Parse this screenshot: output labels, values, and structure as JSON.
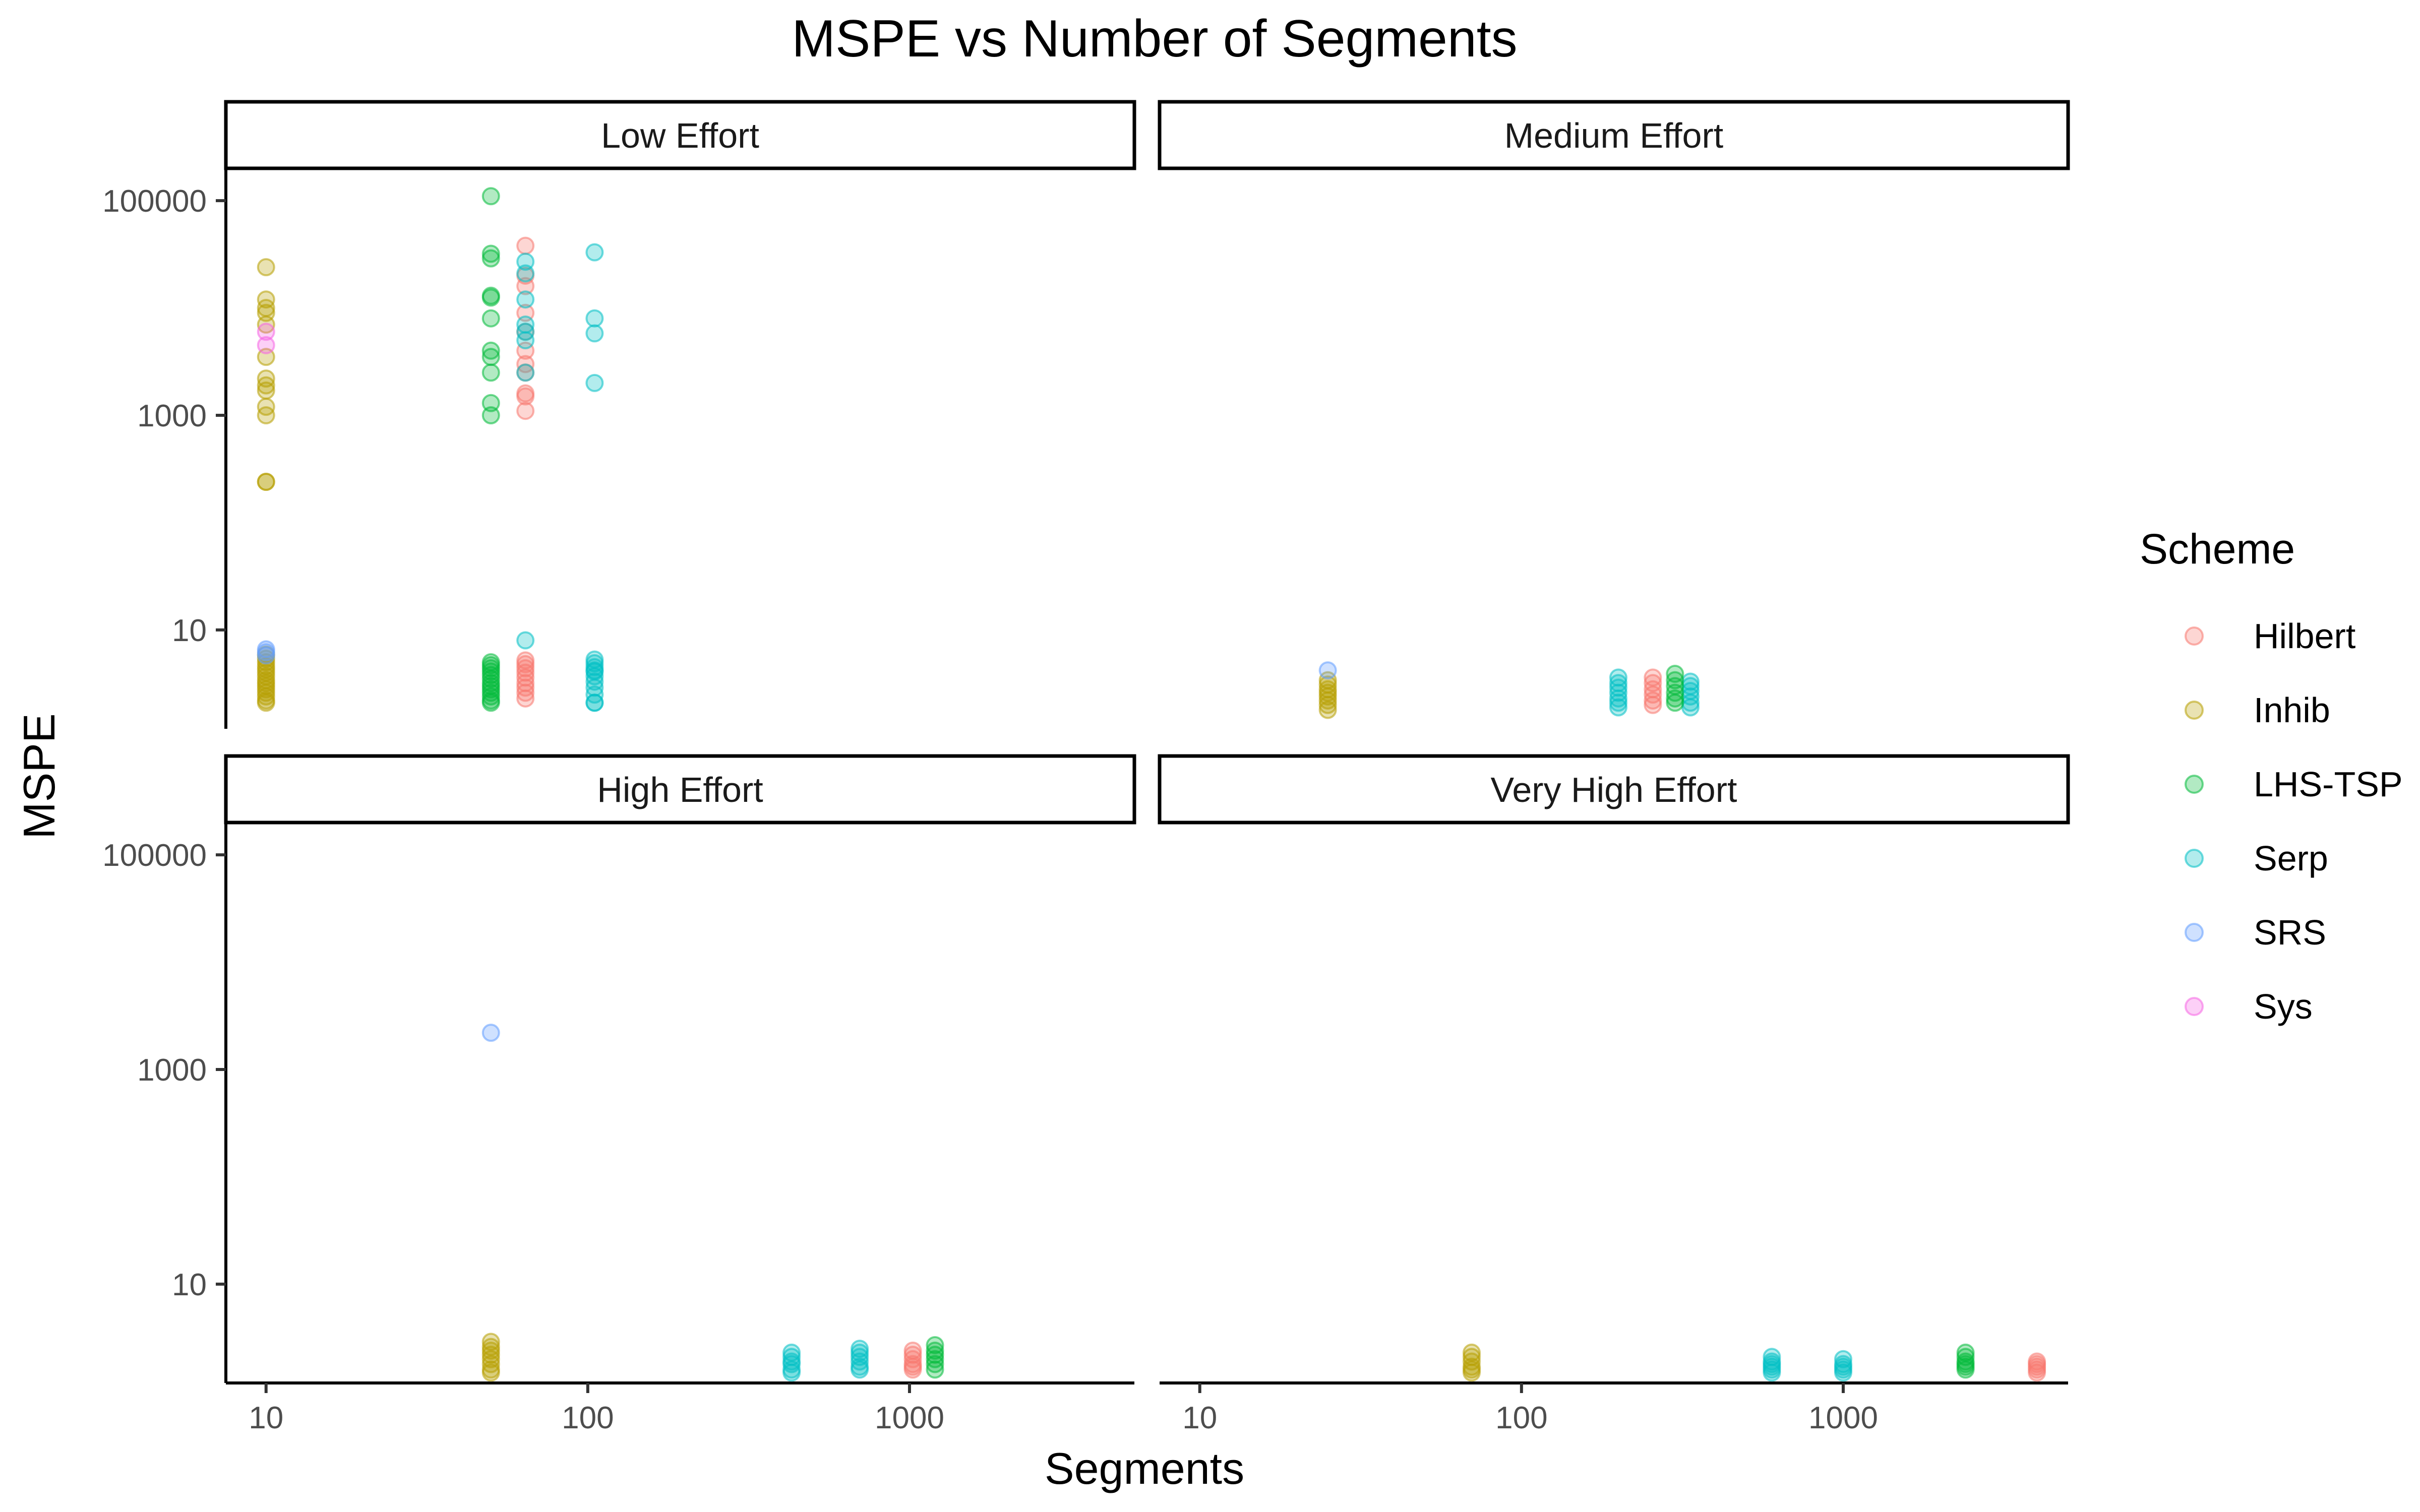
{
  "chart_data": {
    "type": "scatter",
    "title": "MSPE vs Number of Segments",
    "xlabel": "Segments",
    "ylabel": "MSPE",
    "x_scale": "log10",
    "y_scale": "log10",
    "xlim": [
      7.5,
      5000
    ],
    "ylim": [
      1.2,
      200000
    ],
    "x_ticks": [
      10,
      100,
      1000
    ],
    "x_tick_labels": [
      "10",
      "100",
      "1000"
    ],
    "y_ticks": [
      10,
      1000,
      100000
    ],
    "y_tick_labels": [
      "10",
      "1000",
      "100000"
    ],
    "grid": false,
    "point_alpha": 0.3,
    "legend": {
      "title": "Scheme",
      "position": "right",
      "entries": [
        {
          "name": "Hilbert",
          "color": "#F8766D"
        },
        {
          "name": "Inhib",
          "color": "#B79F00"
        },
        {
          "name": "LHS-TSP",
          "color": "#00BA38"
        },
        {
          "name": "Serp",
          "color": "#00BFC4"
        },
        {
          "name": "SRS",
          "color": "#619CFF"
        },
        {
          "name": "Sys",
          "color": "#F564E3"
        }
      ]
    },
    "panels": [
      {
        "label": "Low Effort",
        "series": [
          {
            "name": "Inhib",
            "x": [
              10,
              10,
              10,
              10,
              10,
              10,
              10,
              10,
              10,
              10,
              10,
              10,
              10,
              10,
              10,
              10,
              10,
              10,
              10,
              10,
              10,
              10,
              10,
              10,
              10,
              10,
              10,
              10
            ],
            "y": [
              24000,
              12000,
              10000,
              9000,
              7000,
              3500,
              2200,
              1900,
              1700,
              1200,
              1000,
              240,
              240,
              5.9,
              5.4,
              5,
              4.6,
              4.3,
              4,
              3.7,
              3.4,
              3.2,
              3,
              2.8,
              2.6,
              2.4,
              2.2,
              2.1
            ]
          },
          {
            "name": "Sys",
            "x": [
              10,
              10
            ],
            "y": [
              6000,
              4500
            ]
          },
          {
            "name": "SRS",
            "x": [
              10,
              10,
              10
            ],
            "y": [
              6.6,
              6.2,
              5.8
            ]
          },
          {
            "name": "LHS-TSP",
            "x": [
              50,
              50,
              50,
              50,
              50,
              50,
              50,
              50,
              50,
              50,
              50,
              50,
              50,
              50,
              50,
              50,
              50,
              50,
              50,
              50,
              50,
              50,
              50,
              50
            ],
            "y": [
              110000,
              32000,
              29000,
              13000,
              12500,
              8000,
              4000,
              3500,
              2500,
              1300,
              1000,
              5,
              4.7,
              4.4,
              4.1,
              3.8,
              3.5,
              3.2,
              3,
              2.8,
              2.6,
              2.4,
              2.2,
              2.1
            ]
          },
          {
            "name": "Hilbert",
            "x": [
              64,
              64,
              64,
              64,
              64,
              64,
              64,
              64,
              64,
              64,
              64,
              64,
              64,
              64,
              64,
              64,
              64,
              64,
              64,
              64
            ],
            "y": [
              38000,
              20000,
              16000,
              9000,
              6000,
              4000,
              3000,
              2500,
              1600,
              1500,
              1100,
              5.2,
              4.8,
              4.4,
              4,
              3.6,
              3.2,
              2.9,
              2.6,
              2.3
            ]
          },
          {
            "name": "Serp",
            "x": [
              64,
              64,
              64,
              64,
              64,
              64,
              64,
              64,
              105,
              105,
              105,
              105,
              105,
              105,
              105,
              105,
              105,
              105,
              105,
              105,
              105,
              105,
              105
            ],
            "y": [
              27000,
              21000,
              12000,
              7000,
              6000,
              5000,
              2500,
              8,
              4.2,
              2.1,
              33000,
              8000,
              5800,
              2000,
              5.3,
              4.9,
              4.5,
              4.1,
              3.7,
              3.3,
              2.9,
              2.5,
              2.1
            ]
          }
        ]
      },
      {
        "label": "Medium Effort",
        "series": [
          {
            "name": "Inhib",
            "x": [
              25,
              25,
              25,
              25,
              25,
              25,
              25,
              25
            ],
            "y": [
              3.4,
              3.1,
              2.8,
              2.6,
              2.4,
              2.2,
              2,
              1.8
            ]
          },
          {
            "name": "SRS",
            "x": [
              25
            ],
            "y": [
              4.2
            ]
          },
          {
            "name": "Serp",
            "x": [
              200,
              200,
              200,
              200,
              200,
              200,
              200,
              335,
              335,
              335,
              335,
              335,
              335
            ],
            "y": [
              3.6,
              3.2,
              2.9,
              2.6,
              2.3,
              2.1,
              1.9,
              3.3,
              3,
              2.7,
              2.4,
              2.1,
              1.9
            ]
          },
          {
            "name": "Hilbert",
            "x": [
              256,
              256,
              256,
              256,
              256,
              256
            ],
            "y": [
              3.6,
              3.2,
              2.8,
              2.5,
              2.2,
              2
            ]
          },
          {
            "name": "LHS-TSP",
            "x": [
              300,
              300,
              300,
              300,
              300,
              300
            ],
            "y": [
              3.9,
              3.4,
              3,
              2.6,
              2.3,
              2.1
            ]
          }
        ]
      },
      {
        "label": "High Effort",
        "series": [
          {
            "name": "Inhib",
            "x": [
              50,
              50,
              50,
              50,
              50,
              50,
              50,
              50
            ],
            "y": [
              2.9,
              2.6,
              2.4,
              2.2,
              2,
              1.8,
              1.6,
              1.5
            ]
          },
          {
            "name": "SRS",
            "x": [
              50
            ],
            "y": [
              2200
            ]
          },
          {
            "name": "Serp",
            "x": [
              430,
              430,
              430,
              430,
              430,
              430,
              700,
              700,
              700,
              700,
              700,
              700
            ],
            "y": [
              2.3,
              2.1,
              1.9,
              1.8,
              1.6,
              1.5,
              2.5,
              2.3,
              2.1,
              1.9,
              1.7,
              1.6
            ]
          },
          {
            "name": "Hilbert",
            "x": [
              1024,
              1024,
              1024,
              1024,
              1024,
              1024
            ],
            "y": [
              2.4,
              2.2,
              2,
              1.8,
              1.7,
              1.6
            ]
          },
          {
            "name": "LHS-TSP",
            "x": [
              1200,
              1200,
              1200,
              1200,
              1200,
              1200
            ],
            "y": [
              2.7,
              2.4,
              2.2,
              2,
              1.8,
              1.6
            ]
          }
        ]
      },
      {
        "label": "Very High Effort",
        "series": [
          {
            "name": "Inhib",
            "x": [
              70,
              70,
              70,
              70,
              70,
              70
            ],
            "y": [
              2.3,
              2.1,
              1.9,
              1.7,
              1.6,
              1.5
            ]
          },
          {
            "name": "Serp",
            "x": [
              600,
              600,
              600,
              600,
              600,
              600,
              1000,
              1000,
              1000,
              1000,
              1000
            ],
            "y": [
              2.1,
              1.9,
              1.8,
              1.7,
              1.6,
              1.5,
              2,
              1.8,
              1.7,
              1.6,
              1.5
            ]
          },
          {
            "name": "LHS-TSP",
            "x": [
              2400,
              2400,
              2400,
              2400,
              2400,
              2400
            ],
            "y": [
              2.3,
              2.1,
              1.9,
              1.8,
              1.7,
              1.6
            ]
          },
          {
            "name": "Hilbert",
            "x": [
              4000,
              4000,
              4000,
              4000,
              4000
            ],
            "y": [
              1.9,
              1.8,
              1.7,
              1.6,
              1.5
            ]
          }
        ]
      }
    ]
  }
}
